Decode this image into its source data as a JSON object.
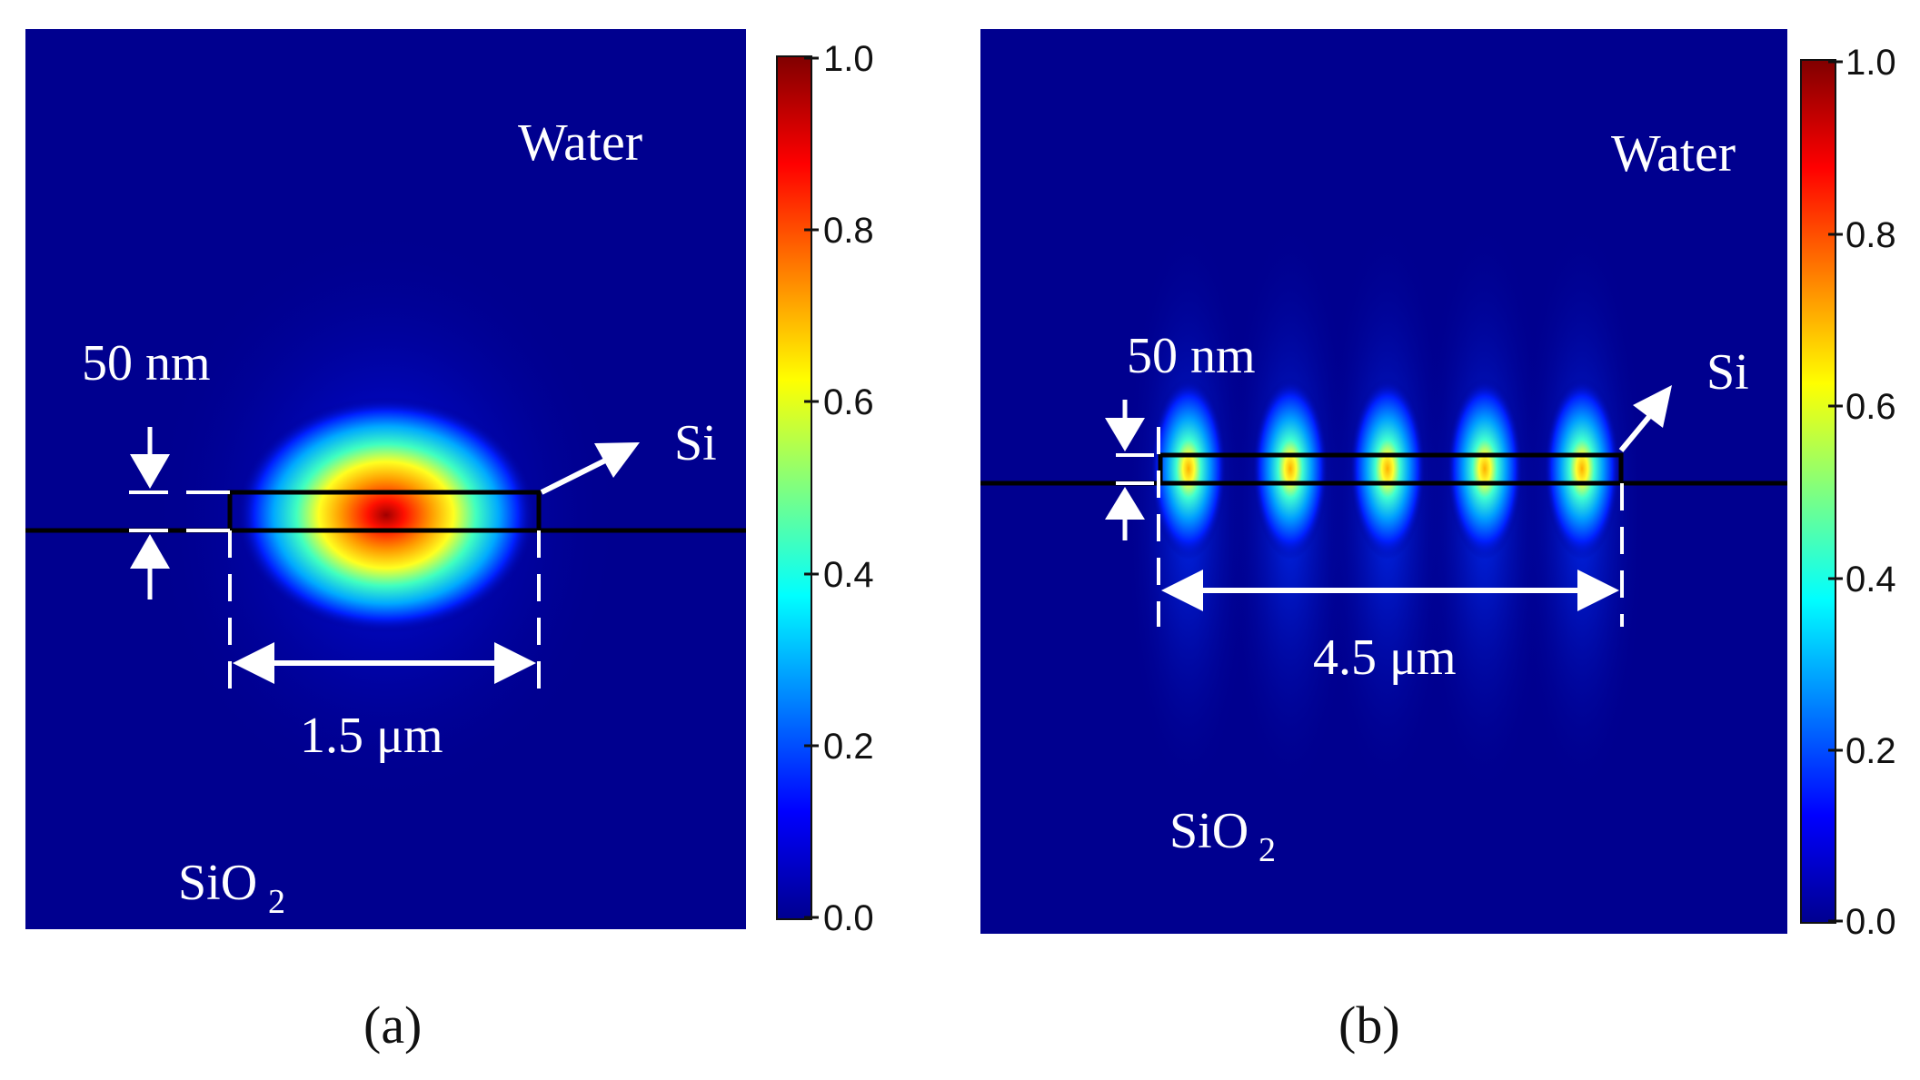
{
  "figure": {
    "panels": [
      {
        "caption": "(a)",
        "labels": {
          "top_medium": "Water",
          "bottom_medium": "SiO",
          "bottom_medium_sub": "2",
          "core": "Si",
          "thickness": "50 nm",
          "width": "1.5 μm"
        },
        "colorbar": {
          "ticks": [
            "1.0",
            "0.8",
            "0.6",
            "0.4",
            "0.2",
            "0.0"
          ]
        }
      },
      {
        "caption": "(b)",
        "labels": {
          "top_medium": "Water",
          "bottom_medium": "SiO",
          "bottom_medium_sub": "2",
          "core": "Si",
          "thickness": "50 nm",
          "width": "4.5 μm"
        },
        "colorbar": {
          "ticks": [
            "1.0",
            "0.8",
            "0.6",
            "0.4",
            "0.2",
            "0.0"
          ]
        }
      }
    ]
  },
  "colors": {
    "background": "#00008f",
    "colormap": [
      "#00008f",
      "#0000ff",
      "#00ffff",
      "#ffff00",
      "#ff0000",
      "#800000"
    ]
  }
}
